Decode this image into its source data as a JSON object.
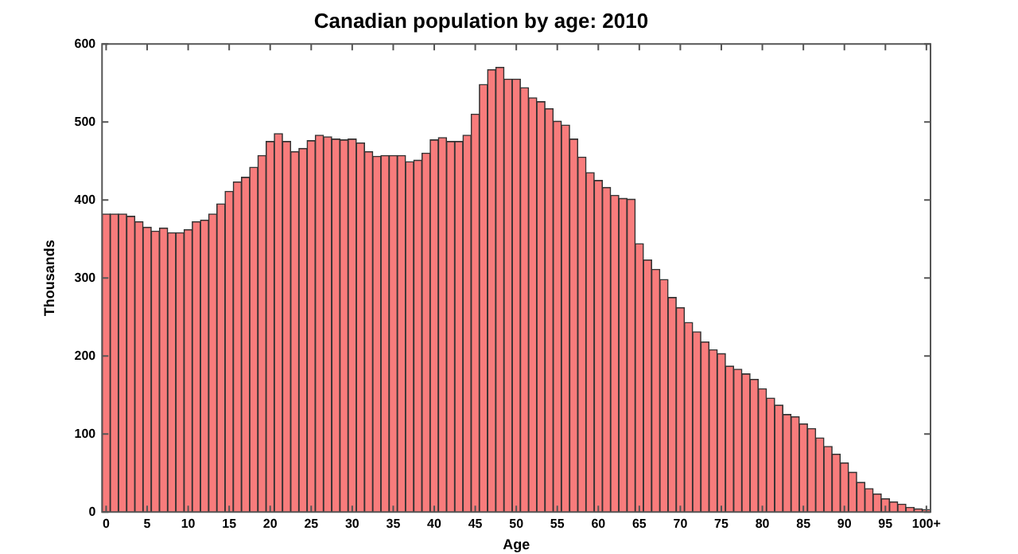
{
  "chart_data": {
    "type": "bar",
    "title": "Canadian population by age: 2010",
    "xlabel": "Age",
    "ylabel": "Thousands",
    "categories": [
      "0",
      null,
      null,
      null,
      null,
      "5",
      null,
      null,
      null,
      null,
      "10",
      null,
      null,
      null,
      null,
      "15",
      null,
      null,
      null,
      null,
      "20",
      null,
      null,
      null,
      null,
      "25",
      null,
      null,
      null,
      null,
      "30",
      null,
      null,
      null,
      null,
      "35",
      null,
      null,
      null,
      null,
      "40",
      null,
      null,
      null,
      null,
      "45",
      null,
      null,
      null,
      null,
      "50",
      null,
      null,
      null,
      null,
      "55",
      null,
      null,
      null,
      null,
      "60",
      null,
      null,
      null,
      null,
      "65",
      null,
      null,
      null,
      null,
      "70",
      null,
      null,
      null,
      null,
      "75",
      null,
      null,
      null,
      null,
      "80",
      null,
      null,
      null,
      null,
      "85",
      null,
      null,
      null,
      null,
      "90",
      null,
      null,
      null,
      null,
      "95",
      null,
      null,
      null,
      null,
      "100+"
    ],
    "values": [
      382,
      382,
      382,
      379,
      372,
      365,
      360,
      364,
      358,
      358,
      362,
      372,
      374,
      382,
      395,
      411,
      423,
      429,
      442,
      457,
      475,
      485,
      475,
      462,
      466,
      476,
      483,
      481,
      478,
      477,
      478,
      473,
      462,
      456,
      457,
      457,
      457,
      449,
      451,
      460,
      477,
      480,
      475,
      475,
      483,
      510,
      548,
      567,
      570,
      555,
      555,
      544,
      531,
      526,
      517,
      501,
      496,
      478,
      455,
      435,
      425,
      416,
      406,
      402,
      401,
      344,
      323,
      311,
      298,
      275,
      262,
      243,
      231,
      218,
      208,
      203,
      187,
      183,
      177,
      170,
      158,
      146,
      137,
      125,
      122,
      113,
      107,
      95,
      84,
      74,
      63,
      51,
      38,
      30,
      23,
      17,
      13,
      10,
      6,
      4,
      3
    ],
    "color": "#f87c7c",
    "ylim": [
      0,
      600
    ],
    "yticks": [
      0,
      100,
      200,
      300,
      400,
      500,
      600
    ],
    "grid": false,
    "legend": false
  }
}
